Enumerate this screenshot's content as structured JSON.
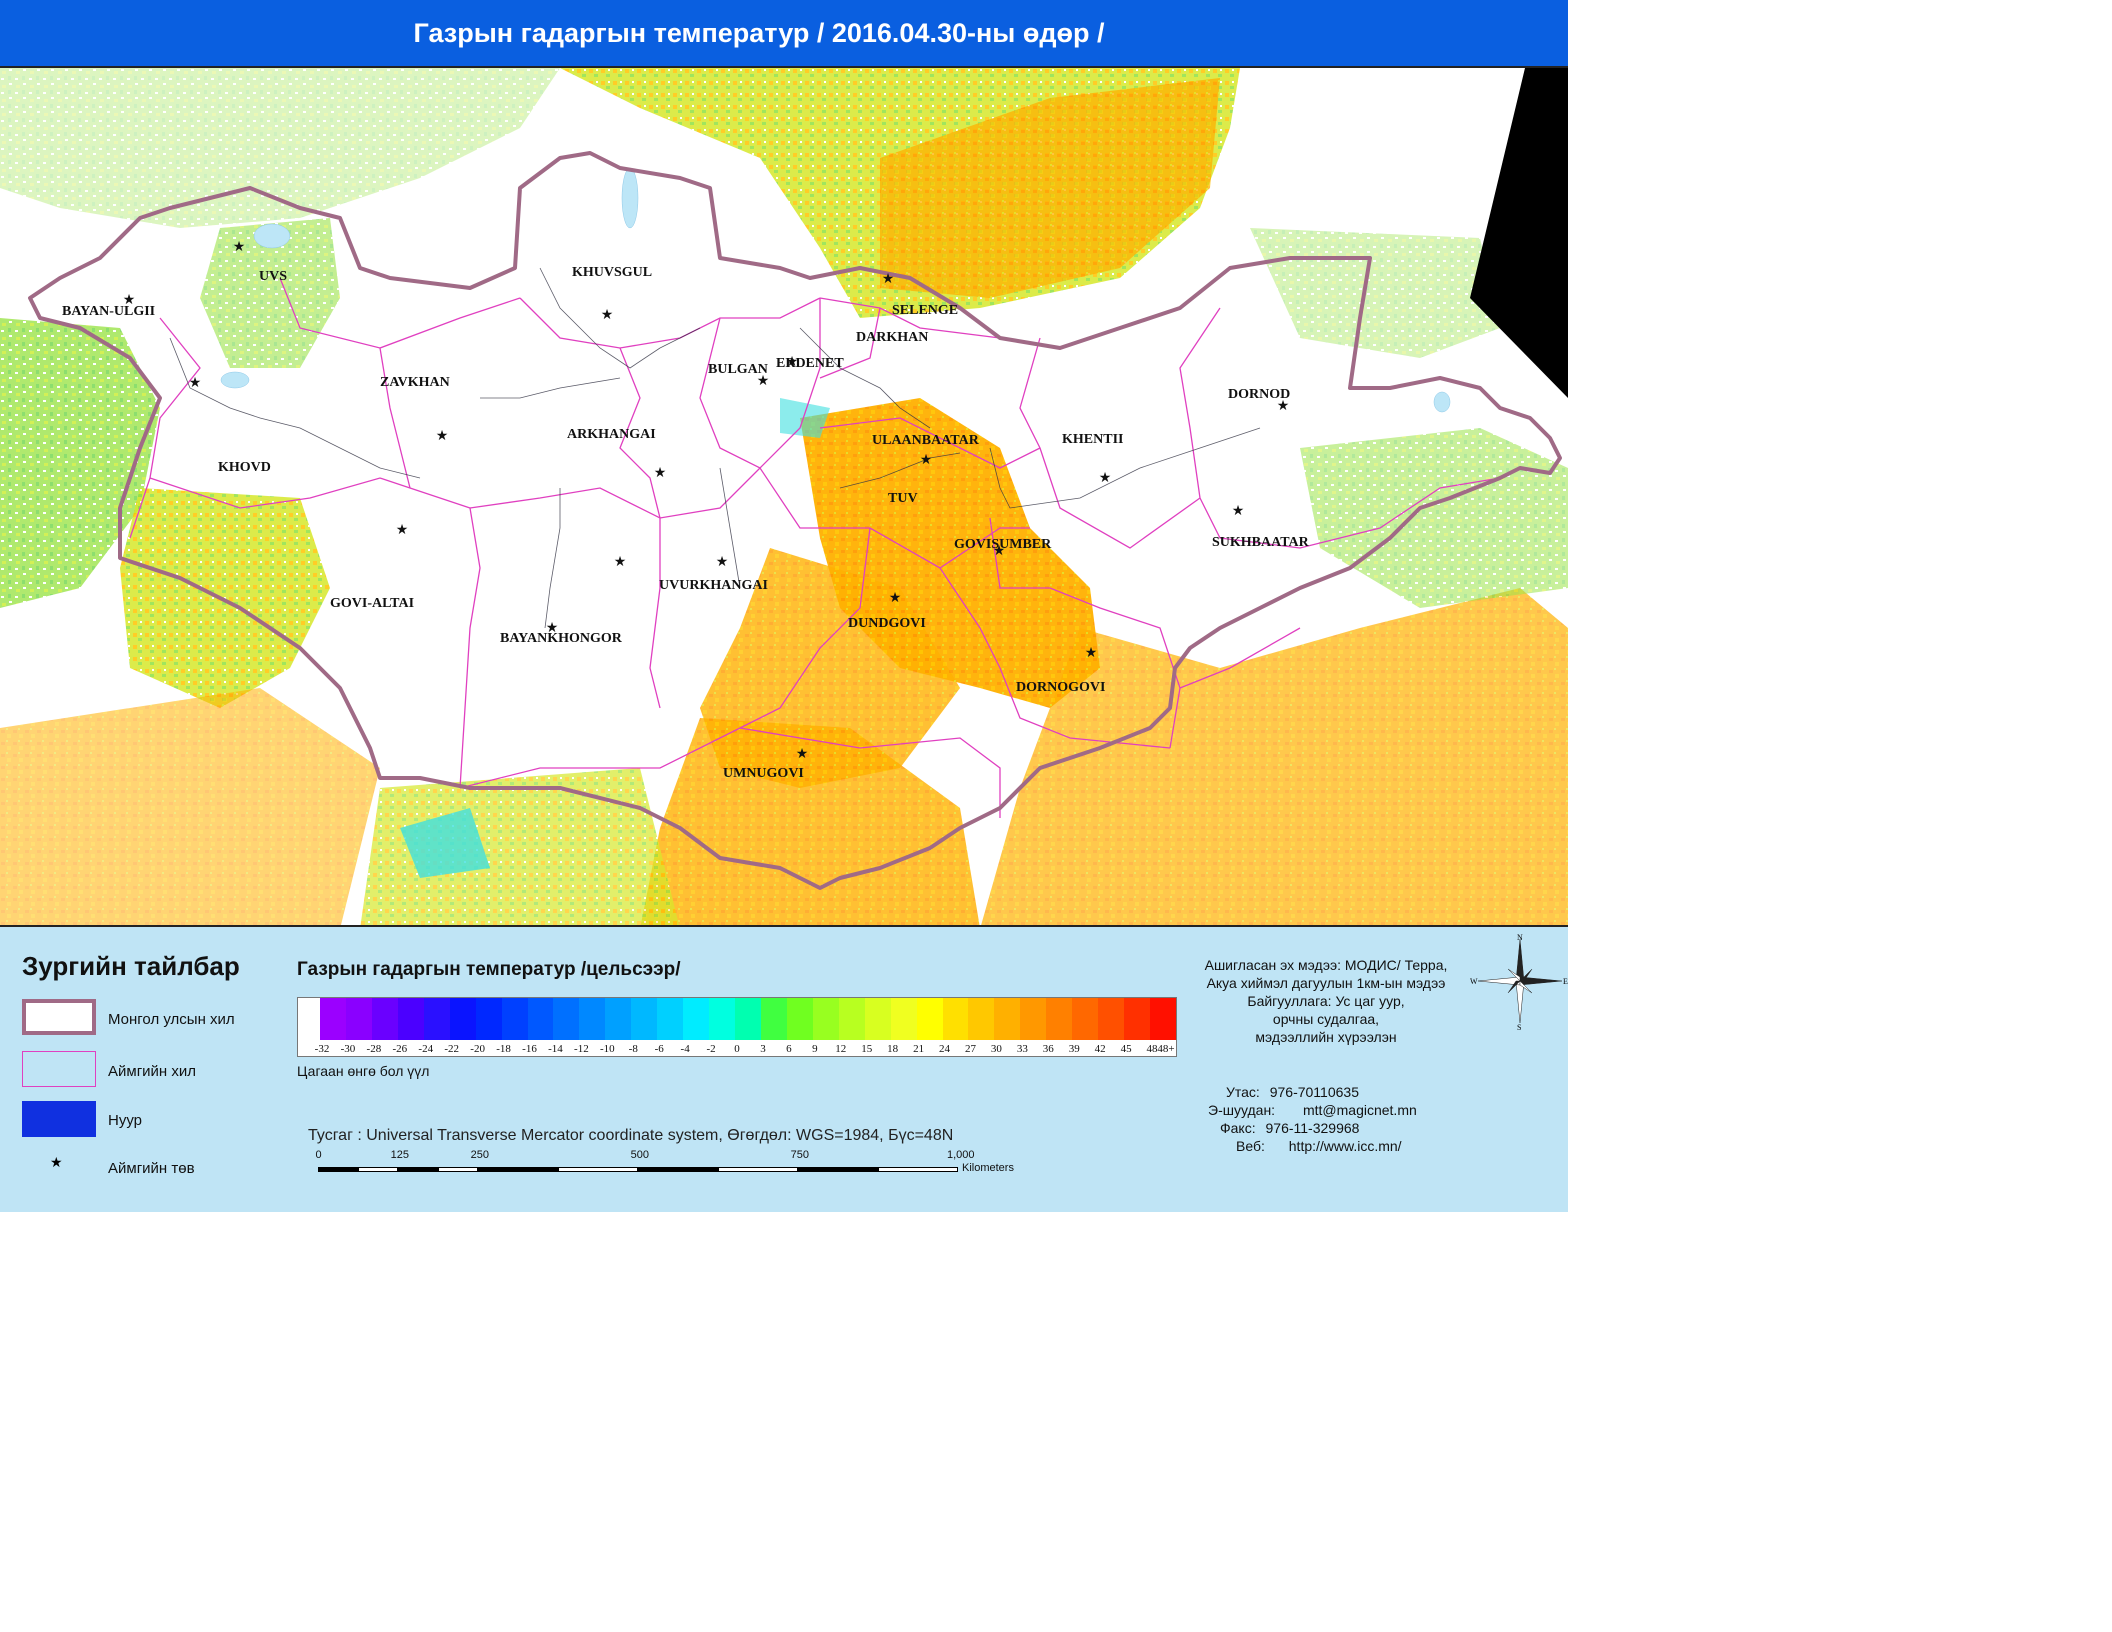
{
  "title": "Газрын гадаргын температур / 2016.04.30-ны өдөр /",
  "map": {
    "aimags": [
      {
        "name": "BAYAN-ULGII"
      },
      {
        "name": "UVS"
      },
      {
        "name": "KHUVSGUL"
      },
      {
        "name": "ZAVKHAN"
      },
      {
        "name": "KHOVD"
      },
      {
        "name": "ARKHANGAI"
      },
      {
        "name": "BULGAN"
      },
      {
        "name": "ERDENET"
      },
      {
        "name": "SELENGE"
      },
      {
        "name": "DARKHAN"
      },
      {
        "name": "ULAANBAATAR"
      },
      {
        "name": "TUV"
      },
      {
        "name": "KHENTII"
      },
      {
        "name": "DORNOD"
      },
      {
        "name": "SUKHBAATAR"
      },
      {
        "name": "GOVISUMBER"
      },
      {
        "name": "GOVI-ALTAI"
      },
      {
        "name": "BAYANKHONGOR"
      },
      {
        "name": "UVURKHANGAI"
      },
      {
        "name": "DUNDGOVI"
      },
      {
        "name": "DORNOGOVI"
      },
      {
        "name": "UMNUGOVI"
      }
    ]
  },
  "legend": {
    "title": "Зургийн тайлбар",
    "items": [
      {
        "label": "Монгол улсын хил"
      },
      {
        "label": "Аймгийн хил"
      },
      {
        "label": "Нуур"
      },
      {
        "label": "Аймгийн төв"
      }
    ]
  },
  "colorbar": {
    "title": "Газрын гадаргын температур /цельсээр/",
    "ticks": [
      "-32",
      "-30",
      "-28",
      "-26",
      "-24",
      "-22",
      "-20",
      "-18",
      "-16",
      "-14",
      "-12",
      "-10",
      "-8",
      "-6",
      "-4",
      "-2",
      "0",
      "3",
      "6",
      "9",
      "12",
      "15",
      "18",
      "21",
      "24",
      "27",
      "30",
      "33",
      "36",
      "39",
      "42",
      "45",
      "48",
      "48+"
    ],
    "colors": [
      "#9b00ff",
      "#8a00ff",
      "#6a00ff",
      "#4b00ff",
      "#2a10ff",
      "#0a14ff",
      "#0028ff",
      "#0040ff",
      "#0058ff",
      "#0070ff",
      "#0088ff",
      "#00a0ff",
      "#00b8ff",
      "#00d0ff",
      "#00ecff",
      "#00ffe0",
      "#00ffb0",
      "#40ff40",
      "#70ff20",
      "#98ff20",
      "#b8ff20",
      "#d8ff20",
      "#f0ff20",
      "#ffff00",
      "#ffe000",
      "#ffc800",
      "#ffb000",
      "#ff9800",
      "#ff8000",
      "#ff6800",
      "#ff5000",
      "#ff3000",
      "#ff1000"
    ],
    "white_note": "Цагаан өнгө бол үүл"
  },
  "projection": "Тусгаг : Universal Transverse Mercator coordinate system, Өгөгдөл: WGS=1984, Бүс=48N",
  "scalebar": {
    "ticks": [
      "0",
      "125",
      "250",
      "500",
      "750",
      "1,000"
    ],
    "unit": "Kilometers"
  },
  "compass": {
    "n": "N",
    "e": "E",
    "s": "S",
    "w": "W"
  },
  "source": {
    "lines": [
      "Ашигласан эх мэдээ: МОДИС/ Терра,",
      "Акуа хиймэл дагуулын 1км-ын мэдээ",
      "Байгууллага: Ус цаг уур,",
      "орчны судалгаа,",
      "мэдээллийн хүрээлэн"
    ]
  },
  "contact": {
    "phone_label": "Утас:",
    "phone": "976-70110635",
    "email_label": "Э-шуудан:",
    "email": "mtt@magicnet.mn",
    "fax_label": "Факс:",
    "fax": "976-11-329968",
    "web_label": "Веб:",
    "web": "http://www.icc.mn/"
  },
  "colors": {
    "title_bg": "#0a5fe0",
    "legend_bg": "#bfe4f5",
    "national_border": "#a06a86",
    "aimag_border": "#e040c0",
    "lake": "#1030e0"
  }
}
